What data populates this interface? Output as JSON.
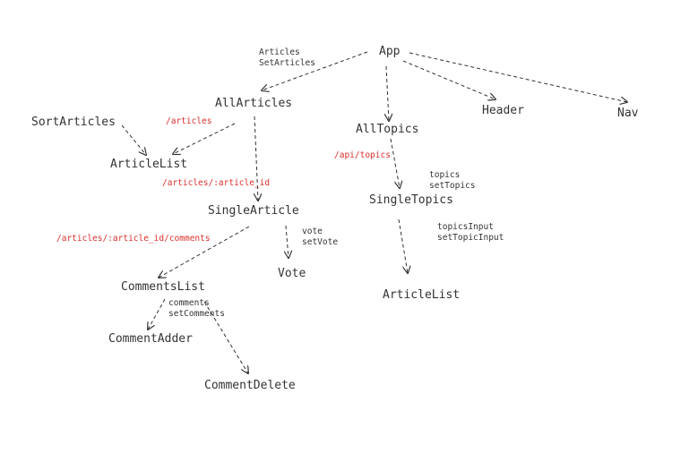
{
  "colors": {
    "text": "#333333",
    "route": "#d9302c",
    "edge": "#333333"
  },
  "nodes": {
    "app": "App",
    "all_articles": "AllArticles",
    "header": "Header",
    "nav": "Nav",
    "all_topics": "AllTopics",
    "sort_articles": "SortArticles",
    "article_list_left": "ArticleList",
    "single_article": "SingleArticle",
    "single_topics": "SingleTopics",
    "vote": "Vote",
    "comments_list": "CommentsList",
    "comment_adder": "CommentAdder",
    "comment_delete": "CommentDelete",
    "article_list_right": "ArticleList"
  },
  "notes": {
    "articles_state": [
      "Articles",
      "SetArticles"
    ],
    "topics_state": [
      "topics",
      "setTopics"
    ],
    "topics_input_state": [
      "topicsInput",
      "setTopicInput"
    ],
    "vote_state": [
      "vote",
      "setVote"
    ],
    "comments_state": [
      "comments",
      "setComments"
    ]
  },
  "routes": {
    "articles": "/articles",
    "api_topics": "/api/topics",
    "article_id": "/articles/:article_id",
    "article_comments": "/articles/:article_id/comments"
  }
}
